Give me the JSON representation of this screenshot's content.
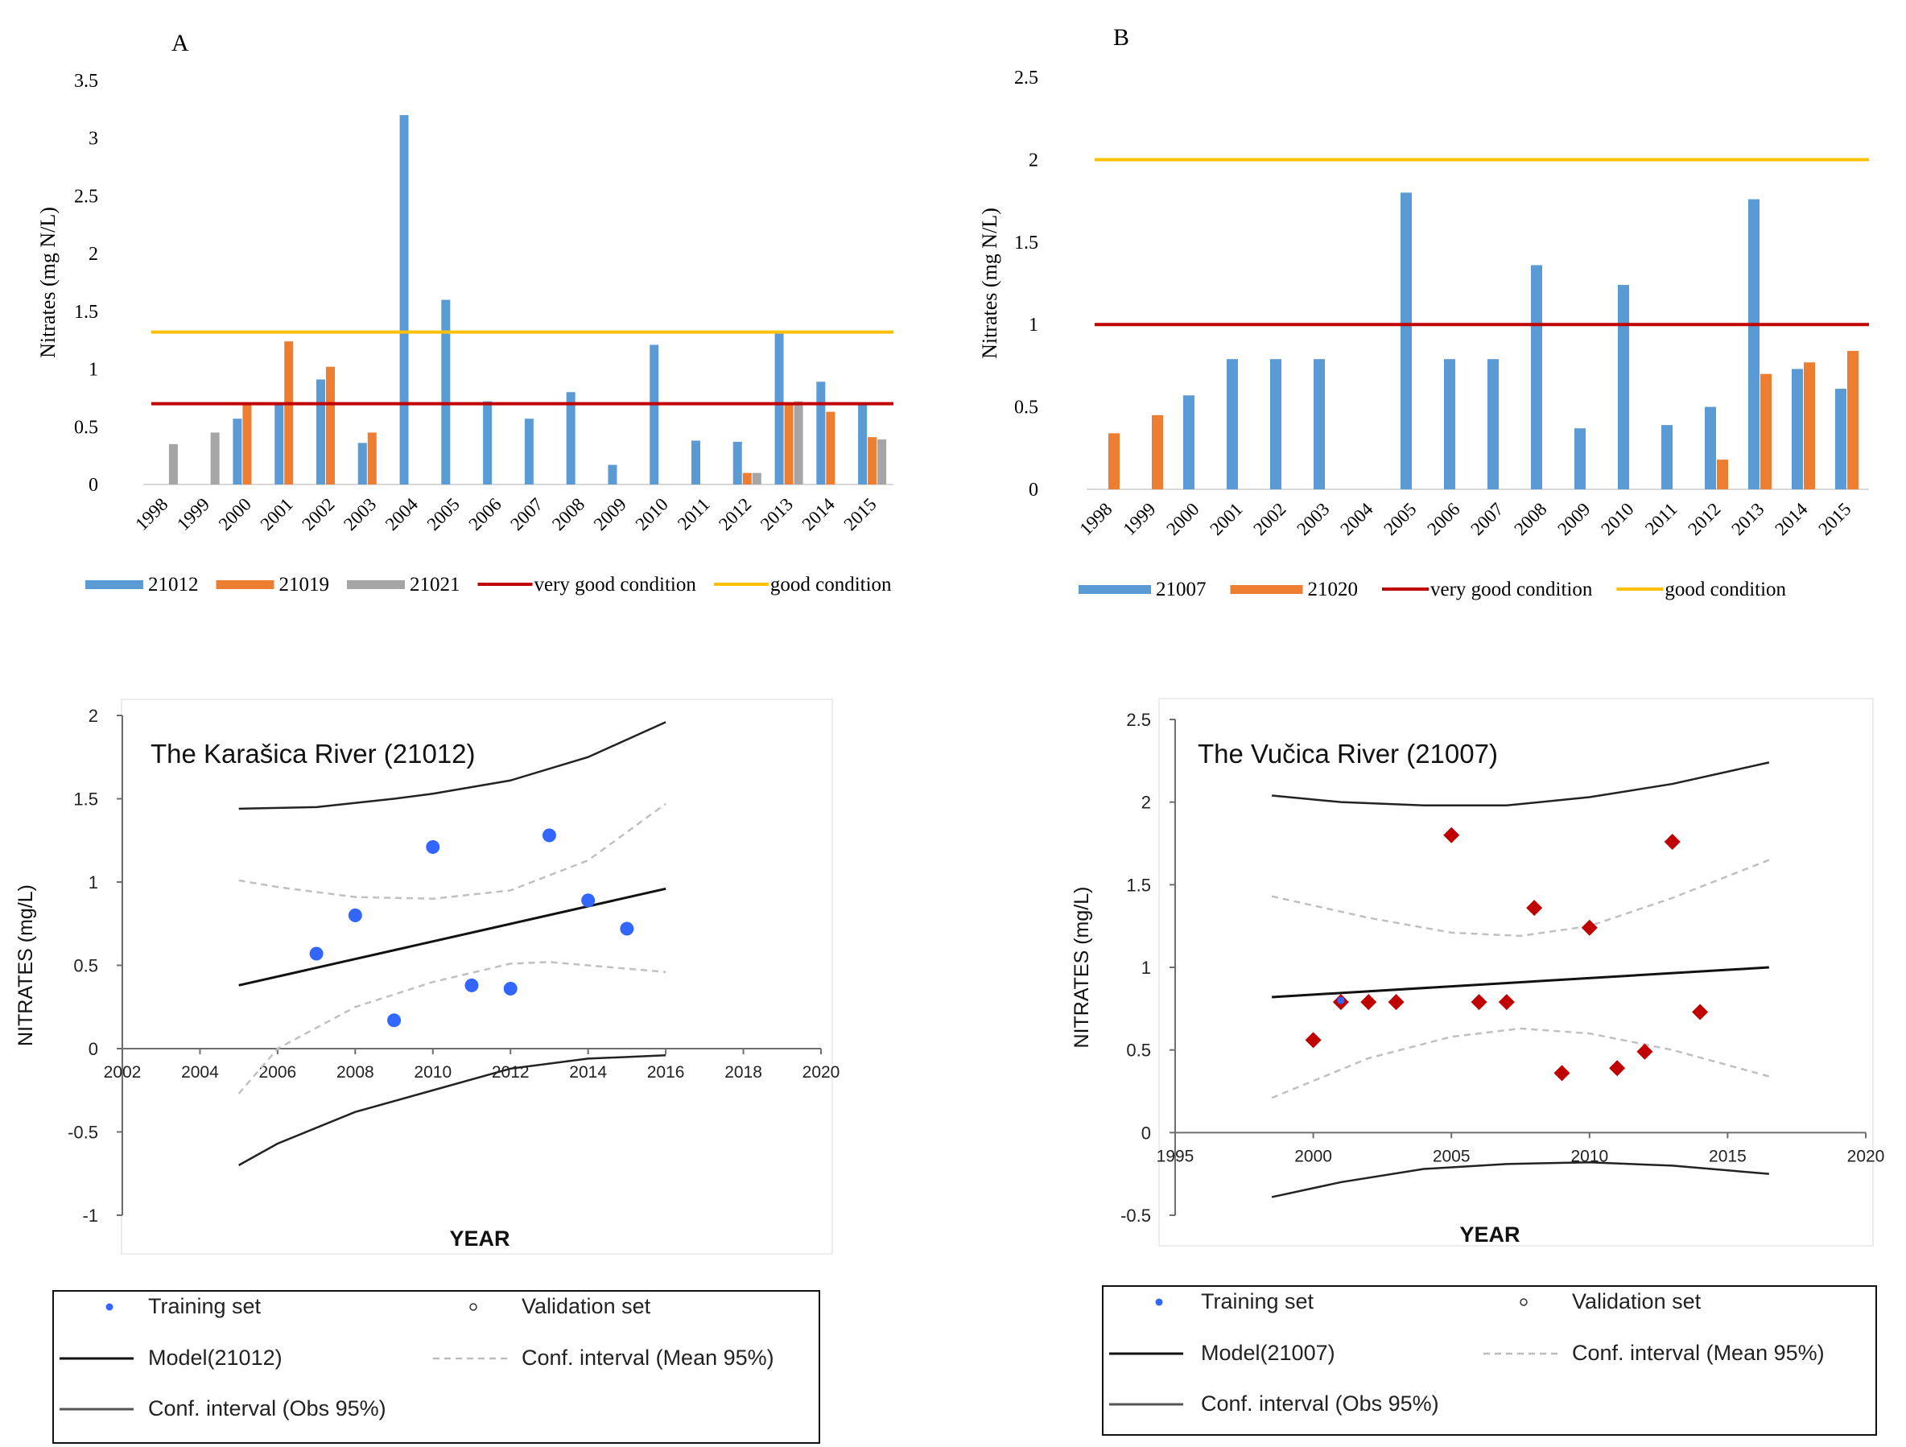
{
  "chart_data": [
    {
      "id": "A",
      "type": "bar",
      "panel_label": "A",
      "ylabel": "Nitrates (mg N/L)",
      "ylim": [
        0,
        3.5
      ],
      "yticks": [
        "0",
        "0.5",
        "1",
        "1.5",
        "2",
        "2.5",
        "3",
        "3.5"
      ],
      "categories": [
        "1998",
        "1999",
        "2000",
        "2001",
        "2002",
        "2003",
        "2004",
        "2005",
        "2006",
        "2007",
        "2008",
        "2009",
        "2010",
        "2011",
        "2012",
        "2013",
        "2014",
        "2015"
      ],
      "series": [
        {
          "name": "21012",
          "color": "#5b9bd5",
          "values": [
            null,
            null,
            0.57,
            0.69,
            0.91,
            0.36,
            3.2,
            1.6,
            0.72,
            0.57,
            0.8,
            0.17,
            1.21,
            0.38,
            0.37,
            1.31,
            0.89,
            0.71
          ]
        },
        {
          "name": "21019",
          "color": "#ed7d31",
          "values": [
            null,
            null,
            0.7,
            1.24,
            1.02,
            0.45,
            null,
            null,
            null,
            null,
            null,
            null,
            null,
            null,
            0.1,
            0.71,
            0.63,
            0.41
          ]
        },
        {
          "name": "21021",
          "color": "#a5a5a5",
          "values": [
            0.35,
            0.45,
            null,
            null,
            null,
            null,
            null,
            null,
            null,
            null,
            null,
            null,
            null,
            null,
            0.1,
            0.72,
            null,
            0.39
          ]
        }
      ],
      "hlines": [
        {
          "name": "very good condition",
          "value": 0.7,
          "color": "#c00000"
        },
        {
          "name": "good condition",
          "value": 1.32,
          "color": "#ffc000"
        }
      ],
      "legend": [
        {
          "label": "21012",
          "kind": "bar",
          "color": "#5b9bd5"
        },
        {
          "label": "21019",
          "kind": "bar",
          "color": "#ed7d31"
        },
        {
          "label": "21021",
          "kind": "bar",
          "color": "#a5a5a5"
        },
        {
          "label": "very good condition",
          "kind": "line",
          "color": "#c00000"
        },
        {
          "label": "good condition",
          "kind": "line",
          "color": "#ffc000"
        }
      ]
    },
    {
      "id": "B",
      "type": "bar",
      "panel_label": "B",
      "ylabel": "Nitrates (mg N/L)",
      "ylim": [
        0,
        2.5
      ],
      "yticks": [
        "0",
        "0.5",
        "1",
        "1.5",
        "2",
        "2.5"
      ],
      "categories": [
        "1998",
        "1999",
        "2000",
        "2001",
        "2002",
        "2003",
        "2004",
        "2005",
        "2006",
        "2007",
        "2008",
        "2009",
        "2010",
        "2011",
        "2012",
        "2013",
        "2014",
        "2015"
      ],
      "series": [
        {
          "name": "21007",
          "color": "#5b9bd5",
          "values": [
            null,
            null,
            0.57,
            0.79,
            0.79,
            0.79,
            null,
            1.8,
            0.79,
            0.79,
            1.36,
            0.37,
            1.24,
            0.39,
            0.5,
            1.76,
            0.73,
            0.61
          ]
        },
        {
          "name": "21020",
          "color": "#ed7d31",
          "values": [
            0.34,
            0.45,
            null,
            null,
            null,
            null,
            null,
            null,
            null,
            null,
            null,
            null,
            null,
            null,
            0.18,
            0.7,
            0.77,
            0.84
          ]
        }
      ],
      "hlines": [
        {
          "name": "very good condition",
          "value": 1.0,
          "color": "#c00000"
        },
        {
          "name": "good condition",
          "value": 2.0,
          "color": "#ffc000"
        }
      ],
      "legend": [
        {
          "label": "21007",
          "kind": "bar",
          "color": "#5b9bd5"
        },
        {
          "label": "21020",
          "kind": "bar",
          "color": "#ed7d31"
        },
        {
          "label": "very good condition",
          "kind": "line",
          "color": "#c00000"
        },
        {
          "label": "good condition",
          "kind": "line",
          "color": "#ffc000"
        }
      ]
    },
    {
      "id": "C",
      "type": "scatter",
      "title": "The Karašica River (21012)",
      "xlabel": "YEAR",
      "ylabel": "NITRATES (mg/L)",
      "xlim": [
        2002,
        2020
      ],
      "ylim": [
        -1,
        2
      ],
      "xticks": [
        "2002",
        "2004",
        "2006",
        "2008",
        "2010",
        "2012",
        "2014",
        "2016",
        "2018",
        "2020"
      ],
      "yticks": [
        "-1",
        "-0.5",
        "0",
        "0.5",
        "1",
        "1.5",
        "2"
      ],
      "marker": "circle",
      "marker_color": "#3366ff",
      "points": {
        "x": [
          2007,
          2008,
          2009,
          2010,
          2011,
          2012,
          2013,
          2014,
          2015
        ],
        "y": [
          0.57,
          0.8,
          0.17,
          1.21,
          0.38,
          0.36,
          1.28,
          0.89,
          0.72
        ]
      },
      "model": {
        "x": [
          2005,
          2016
        ],
        "y": [
          0.38,
          0.96
        ]
      },
      "ci_mean_upper": {
        "x": [
          2005,
          2006,
          2008,
          2010,
          2012,
          2014,
          2016
        ],
        "y": [
          1.01,
          0.97,
          0.91,
          0.9,
          0.95,
          1.13,
          1.47
        ]
      },
      "ci_mean_lower": {
        "x": [
          2005,
          2006,
          2008,
          2010,
          2012,
          2013,
          2014,
          2016
        ],
        "y": [
          -0.27,
          0.0,
          0.25,
          0.4,
          0.51,
          0.52,
          0.5,
          0.46
        ]
      },
      "ci_obs_upper": {
        "x": [
          2005,
          2007,
          2009,
          2010,
          2012,
          2014,
          2016
        ],
        "y": [
          1.44,
          1.45,
          1.5,
          1.53,
          1.61,
          1.75,
          1.96
        ]
      },
      "ci_obs_lower": {
        "x": [
          2005,
          2006,
          2008,
          2010,
          2012,
          2014,
          2016
        ],
        "y": [
          -0.7,
          -0.57,
          -0.38,
          -0.25,
          -0.12,
          -0.06,
          -0.04
        ]
      },
      "legend": {
        "training": "Training set",
        "validation": "Validation set",
        "model": "Model(21012)",
        "ci_mean": "Conf. interval (Mean 95%)",
        "ci_obs": "Conf. interval (Obs 95%)"
      }
    },
    {
      "id": "D",
      "type": "scatter",
      "title": "The Vučica River (21007)",
      "xlabel": "YEAR",
      "ylabel": "NITRATES (mg/L)",
      "xlim": [
        1995,
        2020
      ],
      "ylim": [
        -0.5,
        2.5
      ],
      "xticks": [
        "1995",
        "2000",
        "2005",
        "2010",
        "2015",
        "2020"
      ],
      "yticks": [
        "-0.5",
        "0",
        "0.5",
        "1",
        "1.5",
        "2",
        "2.5"
      ],
      "marker": "diamond",
      "marker_color": "#c00000",
      "points": {
        "x": [
          2000,
          2001,
          2002,
          2003,
          2005,
          2006,
          2007,
          2008,
          2009,
          2010,
          2011,
          2012,
          2013,
          2014
        ],
        "y": [
          0.56,
          0.79,
          0.79,
          0.79,
          1.8,
          0.79,
          0.79,
          1.36,
          0.36,
          1.24,
          0.39,
          0.49,
          1.76,
          0.73
        ]
      },
      "training_marker": {
        "x": 2001,
        "y": 0.8
      },
      "model": {
        "x": [
          1998.5,
          2016.5
        ],
        "y": [
          0.82,
          1.0
        ]
      },
      "ci_mean_upper": {
        "x": [
          1998.5,
          2002,
          2005,
          2007.5,
          2010,
          2013,
          2016.5
        ],
        "y": [
          1.43,
          1.3,
          1.21,
          1.19,
          1.25,
          1.42,
          1.65
        ]
      },
      "ci_mean_lower": {
        "x": [
          1998.5,
          2002,
          2005,
          2007.5,
          2010,
          2013,
          2016.5
        ],
        "y": [
          0.21,
          0.45,
          0.58,
          0.63,
          0.6,
          0.5,
          0.34
        ]
      },
      "ci_obs_upper": {
        "x": [
          1998.5,
          2001,
          2004,
          2007,
          2010,
          2013,
          2016.5
        ],
        "y": [
          2.04,
          2.0,
          1.98,
          1.98,
          2.03,
          2.11,
          2.24
        ]
      },
      "ci_obs_lower": {
        "x": [
          1998.5,
          2001,
          2004,
          2007,
          2010,
          2013,
          2016.5
        ],
        "y": [
          -0.39,
          -0.3,
          -0.22,
          -0.19,
          -0.18,
          -0.2,
          -0.25
        ]
      },
      "legend": {
        "training": "Training set",
        "validation": "Validation set",
        "model": "Model(21007)",
        "ci_mean": "Conf. interval (Mean 95%)",
        "ci_obs": "Conf. interval (Obs 95%)"
      }
    }
  ]
}
